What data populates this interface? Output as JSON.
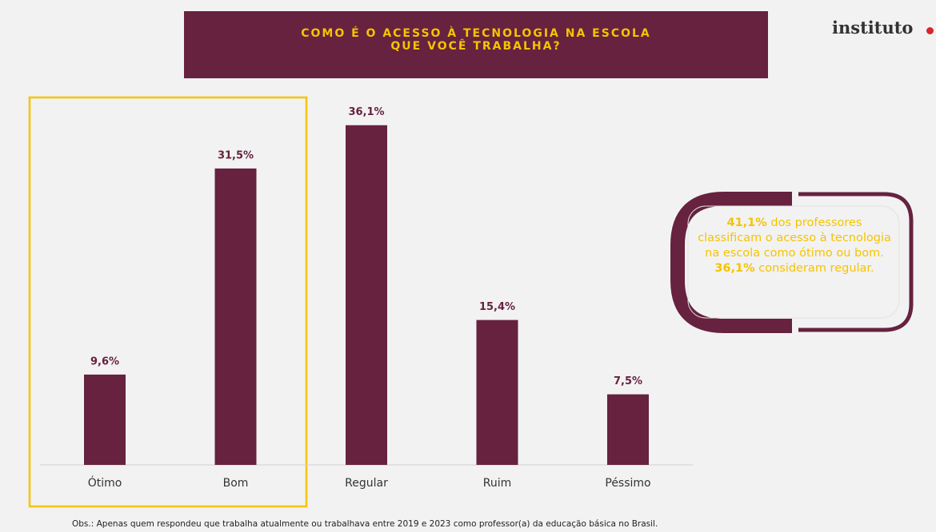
{
  "header": {
    "title": "COMO É O ACESSO À TECNOLOGIA NA ESCOLA QUE VOCÊ TRABALHA?",
    "logo": "instituto"
  },
  "chart_data": {
    "type": "bar",
    "categories": [
      "Ótimo",
      "Bom",
      "Regular",
      "Ruim",
      "Péssimo"
    ],
    "values": [
      9.6,
      31.5,
      36.1,
      15.4,
      7.5
    ],
    "value_labels": [
      "9,6%",
      "31,5%",
      "36,1%",
      "15,4%",
      "7,5%"
    ],
    "color": "#66223f"
  },
  "callout": [
    "41,1%",
    " dos professores classificam o acesso à tecnologia na escola como ótimo ou bom. ",
    "36,1%",
    " consideram regular."
  ],
  "footnote": "Obs.: Apenas quem respondeu que trabalha atualmente ou trabalhava entre 2019 e 2023 como professor(a) da educação básica no Brasil."
}
